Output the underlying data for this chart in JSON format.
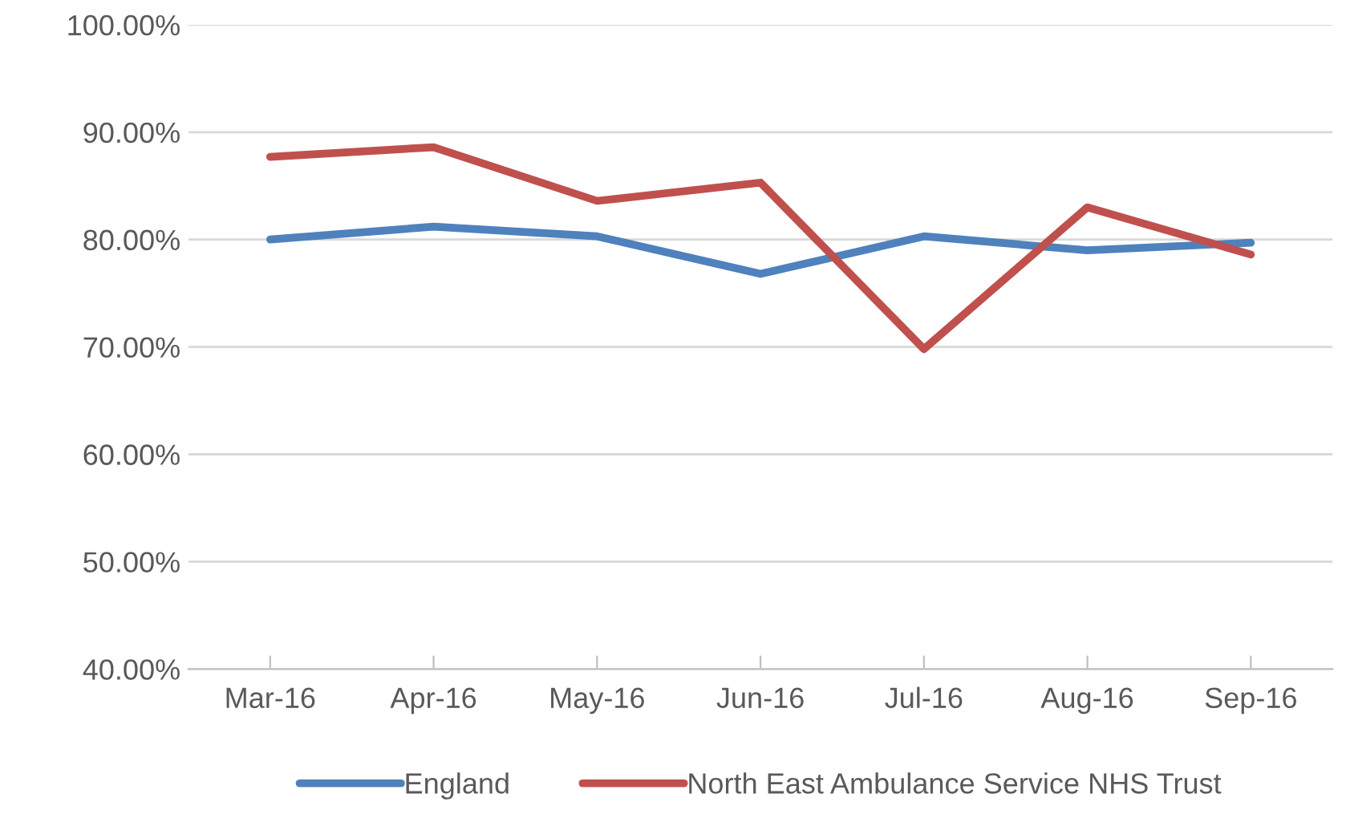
{
  "chart_data": {
    "type": "line",
    "categories": [
      "Mar-16",
      "Apr-16",
      "May-16",
      "Jun-16",
      "Jul-16",
      "Aug-16",
      "Sep-16"
    ],
    "series": [
      {
        "name": "England",
        "color": "#4f81bd",
        "values": [
          80.0,
          81.2,
          80.3,
          76.8,
          80.3,
          79.0,
          79.7
        ]
      },
      {
        "name": "North East Ambulance Service NHS Trust",
        "color": "#c0504d",
        "values": [
          87.7,
          88.6,
          83.6,
          85.3,
          69.8,
          83.0,
          78.6
        ]
      }
    ],
    "ylim": [
      40,
      100
    ],
    "yticks": [
      {
        "value": 40,
        "label": "40.00%"
      },
      {
        "value": 50,
        "label": "50.00%"
      },
      {
        "value": 60,
        "label": "60.00%"
      },
      {
        "value": 70,
        "label": "70.00%"
      },
      {
        "value": 80,
        "label": "80.00%"
      },
      {
        "value": 90,
        "label": "90.00%"
      },
      {
        "value": 100,
        "label": "100.00%"
      }
    ],
    "grid": "y",
    "legend": "bottom",
    "marker": "none",
    "line_style": "solid"
  }
}
